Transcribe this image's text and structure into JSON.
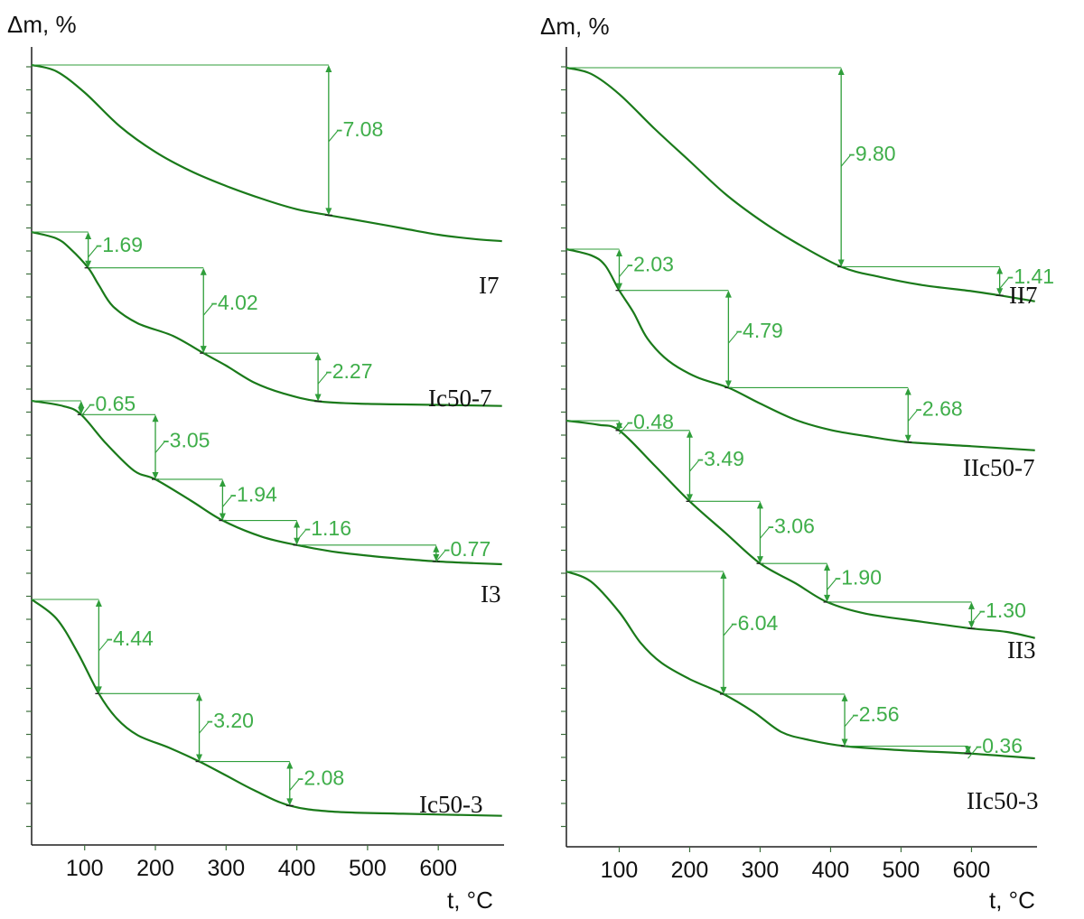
{
  "chart_data": [
    {
      "type": "line",
      "ylabel": "Δm, %",
      "xlabel": "t, °C",
      "xticks": [
        100,
        200,
        300,
        400,
        500,
        600
      ],
      "series": [
        {
          "name": "I7",
          "points": [
            [
              25,
              0
            ],
            [
              60,
              -0.3
            ],
            [
              100,
              -1.3
            ],
            [
              150,
              -2.9
            ],
            [
              200,
              -4.1
            ],
            [
              250,
              -5.0
            ],
            [
              300,
              -5.7
            ],
            [
              350,
              -6.3
            ],
            [
              400,
              -6.8
            ],
            [
              445,
              -7.08
            ],
            [
              500,
              -7.4
            ],
            [
              550,
              -7.7
            ],
            [
              600,
              -8.0
            ],
            [
              650,
              -8.2
            ],
            [
              690,
              -8.3
            ]
          ],
          "steps": [
            {
              "label": "-7.08",
              "t_start": 25,
              "t_end": 445
            }
          ]
        },
        {
          "name": "Ic50-7",
          "points": [
            [
              25,
              0
            ],
            [
              60,
              -0.3
            ],
            [
              80,
              -0.8
            ],
            [
              105,
              -1.69
            ],
            [
              120,
              -2.5
            ],
            [
              140,
              -3.5
            ],
            [
              175,
              -4.3
            ],
            [
              225,
              -4.9
            ],
            [
              268,
              -5.71
            ],
            [
              300,
              -6.3
            ],
            [
              340,
              -7.1
            ],
            [
              380,
              -7.6
            ],
            [
              430,
              -7.98
            ],
            [
              500,
              -8.1
            ],
            [
              600,
              -8.15
            ],
            [
              690,
              -8.2
            ]
          ],
          "steps": [
            {
              "label": "-1.69",
              "t_start": 25,
              "t_end": 105
            },
            {
              "label": "-4.02",
              "t_start": 105,
              "t_end": 268
            },
            {
              "label": "-2.27",
              "t_start": 268,
              "t_end": 430
            }
          ]
        },
        {
          "name": "I3",
          "points": [
            [
              25,
              0
            ],
            [
              70,
              -0.25
            ],
            [
              95,
              -0.65
            ],
            [
              130,
              -2.0
            ],
            [
              170,
              -3.3
            ],
            [
              200,
              -3.7
            ],
            [
              250,
              -4.7
            ],
            [
              295,
              -5.64
            ],
            [
              350,
              -6.4
            ],
            [
              400,
              -6.8
            ],
            [
              450,
              -7.1
            ],
            [
              500,
              -7.3
            ],
            [
              550,
              -7.45
            ],
            [
              597,
              -7.57
            ],
            [
              650,
              -7.65
            ],
            [
              690,
              -7.7
            ]
          ],
          "steps": [
            {
              "label": "-0.65",
              "t_start": 25,
              "t_end": 95
            },
            {
              "label": "-3.05",
              "t_start": 95,
              "t_end": 200
            },
            {
              "label": "-1.94",
              "t_start": 200,
              "t_end": 295
            },
            {
              "label": "-1.16",
              "t_start": 295,
              "t_end": 400
            },
            {
              "label": "-0.77",
              "t_start": 400,
              "t_end": 597
            }
          ]
        },
        {
          "name": "Ic50-3",
          "points": [
            [
              25,
              0
            ],
            [
              60,
              -0.9
            ],
            [
              90,
              -2.5
            ],
            [
              120,
              -4.44
            ],
            [
              145,
              -5.6
            ],
            [
              175,
              -6.4
            ],
            [
              220,
              -7.0
            ],
            [
              262,
              -7.64
            ],
            [
              300,
              -8.3
            ],
            [
              340,
              -9.0
            ],
            [
              390,
              -9.72
            ],
            [
              450,
              -10.0
            ],
            [
              550,
              -10.1
            ],
            [
              690,
              -10.2
            ]
          ],
          "steps": [
            {
              "label": "-4.44",
              "t_start": 25,
              "t_end": 120
            },
            {
              "label": "-3.20",
              "t_start": 120,
              "t_end": 262
            },
            {
              "label": "-2.08",
              "t_start": 262,
              "t_end": 390
            }
          ]
        }
      ]
    },
    {
      "type": "line",
      "ylabel": "Δm, %",
      "xlabel": "t, °C",
      "xticks": [
        100,
        200,
        300,
        400,
        500,
        600
      ],
      "series": [
        {
          "name": "II7",
          "points": [
            [
              25,
              0
            ],
            [
              60,
              -0.3
            ],
            [
              100,
              -1.3
            ],
            [
              150,
              -3.0
            ],
            [
              200,
              -4.6
            ],
            [
              250,
              -6.2
            ],
            [
              300,
              -7.5
            ],
            [
              350,
              -8.6
            ],
            [
              415,
              -9.8
            ],
            [
              470,
              -10.3
            ],
            [
              530,
              -10.7
            ],
            [
              600,
              -11.0
            ],
            [
              640,
              -11.21
            ],
            [
              690,
              -11.5
            ]
          ],
          "steps": [
            {
              "label": "-9.80",
              "t_start": 25,
              "t_end": 415
            },
            {
              "label": "-1.41",
              "t_start": 415,
              "t_end": 640
            }
          ]
        },
        {
          "name": "IIc50-7",
          "points": [
            [
              25,
              0
            ],
            [
              60,
              -0.3
            ],
            [
              80,
              -0.8
            ],
            [
              100,
              -2.03
            ],
            [
              120,
              -3.1
            ],
            [
              140,
              -4.4
            ],
            [
              170,
              -5.5
            ],
            [
              210,
              -6.3
            ],
            [
              255,
              -6.82
            ],
            [
              300,
              -7.6
            ],
            [
              350,
              -8.4
            ],
            [
              400,
              -8.9
            ],
            [
              450,
              -9.2
            ],
            [
              510,
              -9.5
            ],
            [
              600,
              -9.7
            ],
            [
              690,
              -9.9
            ]
          ],
          "steps": [
            {
              "label": "-2.03",
              "t_start": 25,
              "t_end": 100
            },
            {
              "label": "-4.79",
              "t_start": 100,
              "t_end": 255
            },
            {
              "label": "-2.68",
              "t_start": 255,
              "t_end": 510
            }
          ]
        },
        {
          "name": "II3",
          "points": [
            [
              25,
              0
            ],
            [
              70,
              -0.2
            ],
            [
              100,
              -0.48
            ],
            [
              150,
              -2.2
            ],
            [
              200,
              -3.97
            ],
            [
              250,
              -5.5
            ],
            [
              300,
              -7.03
            ],
            [
              350,
              -8.0
            ],
            [
              395,
              -8.93
            ],
            [
              450,
              -9.5
            ],
            [
              530,
              -9.9
            ],
            [
              600,
              -10.23
            ],
            [
              650,
              -10.4
            ],
            [
              690,
              -10.7
            ]
          ],
          "steps": [
            {
              "label": "-0.48",
              "t_start": 25,
              "t_end": 100
            },
            {
              "label": "-3.49",
              "t_start": 100,
              "t_end": 200
            },
            {
              "label": "-3.06",
              "t_start": 200,
              "t_end": 300
            },
            {
              "label": "-1.90",
              "t_start": 300,
              "t_end": 395
            },
            {
              "label": "-1.30",
              "t_start": 395,
              "t_end": 600
            }
          ]
        },
        {
          "name": "IIc50-3",
          "points": [
            [
              25,
              0
            ],
            [
              60,
              -0.5
            ],
            [
              100,
              -2.0
            ],
            [
              130,
              -3.5
            ],
            [
              160,
              -4.5
            ],
            [
              200,
              -5.3
            ],
            [
              248,
              -6.04
            ],
            [
              290,
              -6.9
            ],
            [
              330,
              -7.9
            ],
            [
              370,
              -8.3
            ],
            [
              420,
              -8.6
            ],
            [
              500,
              -8.8
            ],
            [
              595,
              -8.96
            ],
            [
              690,
              -9.2
            ]
          ],
          "steps": [
            {
              "label": "-6.04",
              "t_start": 25,
              "t_end": 248
            },
            {
              "label": "-2.56",
              "t_start": 248,
              "t_end": 420
            },
            {
              "label": "-0.36",
              "t_start": 420,
              "t_end": 595
            }
          ]
        }
      ]
    }
  ]
}
